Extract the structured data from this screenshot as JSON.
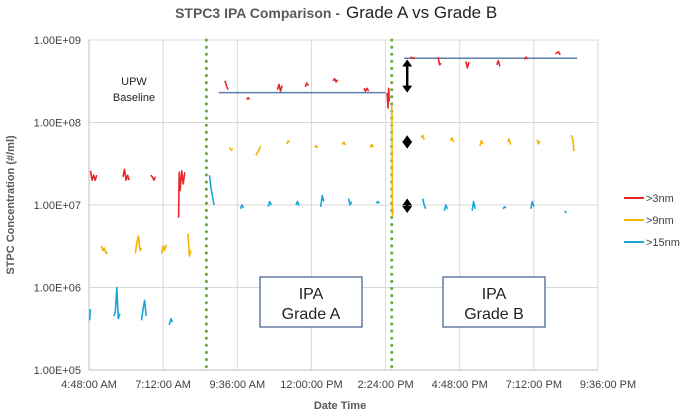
{
  "chart_data": {
    "type": "line",
    "title": "STPC3 IPA Comparison -",
    "title_suffix": "Grade A vs Grade B",
    "xlabel": "Date Time",
    "ylabel": "STPC Concentration (#/ml)",
    "yscale": "log",
    "ylim": [
      100000,
      1000000000
    ],
    "y_ticks": [
      "1.00E+05",
      "1.00E+06",
      "1.00E+07",
      "1.00E+08",
      "1.00E+09"
    ],
    "y_tick_values": [
      100000,
      1000000,
      10000000,
      100000000,
      1000000000
    ],
    "x_unit": "hours",
    "xlim": [
      4.8,
      22.5
    ],
    "x_ticks": [
      "4:48:00 AM",
      "7:12:00 AM",
      "9:36:00 AM",
      "12:00:00 PM",
      "2:24:00 PM",
      "4:48:00 PM",
      "7:12:00 PM",
      "9:36:00 PM"
    ],
    "x_tick_values": [
      4.8,
      7.2,
      9.6,
      12.0,
      14.4,
      16.8,
      19.2,
      21.6
    ],
    "grid": true,
    "legend_position": "right",
    "series": [
      {
        "name": ">3nm",
        "color": "#e8262a",
        "segments": [
          [
            [
              4.85,
              26000000.0
            ],
            [
              4.9,
              20000000.0
            ],
            [
              4.95,
              23000000.0
            ],
            [
              5.0,
              20000000.0
            ],
            [
              5.05,
              23000000.0
            ]
          ],
          [
            [
              5.9,
              22000000.0
            ],
            [
              5.95,
              27000000.0
            ],
            [
              6.0,
              20000000.0
            ],
            [
              6.05,
              23000000.0
            ],
            [
              6.1,
              20000000.0
            ]
          ],
          [
            [
              6.8,
              23000000.0
            ],
            [
              6.85,
              22000000.0
            ],
            [
              6.9,
              20000000.0
            ],
            [
              6.95,
              22000000.0
            ]
          ],
          [
            [
              7.7,
              7000000.0
            ],
            [
              7.72,
              25000000.0
            ],
            [
              7.75,
              15000000.0
            ],
            [
              7.8,
              26000000.0
            ],
            [
              7.85,
              18000000.0
            ],
            [
              7.9,
              25000000.0
            ]
          ],
          [
            [
              9.2,
              320000000.0
            ],
            [
              9.25,
              280000000.0
            ],
            [
              9.3,
              250000000.0
            ]
          ],
          [
            [
              9.9,
              190000000.0
            ],
            [
              9.95,
              200000000.0
            ],
            [
              10.0,
              190000000.0
            ]
          ],
          [
            [
              10.9,
              250000000.0
            ],
            [
              10.95,
              290000000.0
            ],
            [
              11.0,
              240000000.0
            ],
            [
              11.05,
              280000000.0
            ]
          ],
          [
            [
              11.8,
              270000000.0
            ],
            [
              11.85,
              300000000.0
            ],
            [
              11.9,
              280000000.0
            ]
          ],
          [
            [
              12.7,
              320000000.0
            ],
            [
              12.75,
              340000000.0
            ],
            [
              12.8,
              310000000.0
            ],
            [
              12.85,
              330000000.0
            ]
          ],
          [
            [
              13.7,
              260000000.0
            ],
            [
              13.75,
              240000000.0
            ],
            [
              13.8,
              260000000.0
            ],
            [
              13.85,
              240000000.0
            ]
          ],
          [
            [
              14.45,
              230000000.0
            ],
            [
              14.48,
              150000000.0
            ],
            [
              14.5,
              260000000.0
            ],
            [
              14.52,
              180000000.0
            ]
          ],
          [
            [
              15.2,
              620000000.0
            ],
            [
              15.3,
              600000000.0
            ],
            [
              15.35,
              610000000.0
            ]
          ],
          [
            [
              16.1,
              620000000.0
            ],
            [
              16.15,
              500000000.0
            ],
            [
              16.2,
              520000000.0
            ]
          ],
          [
            [
              17.0,
              550000000.0
            ],
            [
              17.05,
              460000000.0
            ],
            [
              17.1,
              540000000.0
            ]
          ],
          [
            [
              18.0,
              500000000.0
            ],
            [
              18.05,
              560000000.0
            ],
            [
              18.1,
              480000000.0
            ]
          ],
          [
            [
              18.9,
              580000000.0
            ],
            [
              18.95,
              620000000.0
            ],
            [
              19.0,
              590000000.0
            ]
          ],
          [
            [
              19.9,
              680000000.0
            ],
            [
              20.0,
              720000000.0
            ],
            [
              20.05,
              660000000.0
            ]
          ]
        ]
      },
      {
        "name": ">9nm",
        "color": "#f5b400",
        "segments": [
          [
            [
              5.2,
              3200000.0
            ],
            [
              5.25,
              2800000.0
            ],
            [
              5.3,
              3000000.0
            ],
            [
              5.35,
              2600000.0
            ],
            [
              5.4,
              2700000.0
            ]
          ],
          [
            [
              6.3,
              2600000.0
            ],
            [
              6.35,
              3500000.0
            ],
            [
              6.4,
              4200000.0
            ],
            [
              6.45,
              2800000.0
            ],
            [
              6.5,
              3000000.0
            ]
          ],
          [
            [
              7.15,
              2600000.0
            ],
            [
              7.2,
              3200000.0
            ],
            [
              7.25,
              2800000.0
            ],
            [
              7.3,
              3300000.0
            ]
          ],
          [
            [
              8.0,
              4500000.0
            ],
            [
              8.05,
              2400000.0
            ],
            [
              8.1,
              2800000.0
            ]
          ],
          [
            [
              9.35,
              50000000.0
            ],
            [
              9.4,
              46000000.0
            ],
            [
              9.45,
              48000000.0
            ]
          ],
          [
            [
              10.2,
              40000000.0
            ],
            [
              10.3,
              46000000.0
            ],
            [
              10.35,
              52000000.0
            ]
          ],
          [
            [
              11.2,
              55000000.0
            ],
            [
              11.25,
              60000000.0
            ],
            [
              11.3,
              58000000.0
            ]
          ],
          [
            [
              12.1,
              50000000.0
            ],
            [
              12.15,
              52000000.0
            ],
            [
              12.2,
              49000000.0
            ]
          ],
          [
            [
              13.0,
              54000000.0
            ],
            [
              13.05,
              58000000.0
            ],
            [
              13.1,
              53000000.0
            ]
          ],
          [
            [
              13.9,
              50000000.0
            ],
            [
              13.95,
              54000000.0
            ],
            [
              14.0,
              50000000.0
            ]
          ],
          [
            [
              14.6,
              160000000.0
            ],
            [
              14.62,
              7500000.0
            ],
            [
              14.65,
              9000000.0
            ]
          ],
          [
            [
              15.55,
              65000000.0
            ],
            [
              15.6,
              70000000.0
            ],
            [
              15.65,
              62000000.0
            ]
          ],
          [
            [
              16.5,
              60000000.0
            ],
            [
              16.55,
              65000000.0
            ],
            [
              16.6,
              58000000.0
            ]
          ],
          [
            [
              17.45,
              52000000.0
            ],
            [
              17.5,
              60000000.0
            ],
            [
              17.55,
              55000000.0
            ]
          ],
          [
            [
              18.35,
              58000000.0
            ],
            [
              18.4,
              63000000.0
            ],
            [
              18.45,
              54000000.0
            ]
          ],
          [
            [
              19.3,
              62000000.0
            ],
            [
              19.35,
              55000000.0
            ],
            [
              19.4,
              60000000.0
            ]
          ],
          [
            [
              20.4,
              70000000.0
            ],
            [
              20.45,
              65000000.0
            ],
            [
              20.5,
              45000000.0
            ]
          ]
        ]
      },
      {
        "name": ">15nm",
        "color": "#1aa6d8",
        "segments": [
          [
            [
              4.82,
              400000.0
            ],
            [
              4.85,
              550000.0
            ]
          ],
          [
            [
              5.6,
              450000.0
            ],
            [
              5.65,
              500000.0
            ],
            [
              5.7,
              1000000.0
            ],
            [
              5.75,
              420000.0
            ],
            [
              5.8,
              480000.0
            ]
          ],
          [
            [
              6.5,
              400000.0
            ],
            [
              6.55,
              550000.0
            ],
            [
              6.6,
              700000.0
            ],
            [
              6.65,
              450000.0
            ]
          ],
          [
            [
              7.4,
              350000.0
            ],
            [
              7.45,
              420000.0
            ],
            [
              7.5,
              380000.0
            ]
          ],
          [
            [
              8.7,
              23000000.0
            ],
            [
              8.75,
              16000000.0
            ],
            [
              8.85,
              10000000.0
            ]
          ],
          [
            [
              9.7,
              9000000.0
            ],
            [
              9.75,
              10000000.0
            ],
            [
              9.8,
              9200000.0
            ]
          ],
          [
            [
              10.6,
              9500000.0
            ],
            [
              10.65,
              11000000.0
            ],
            [
              10.7,
              10000000.0
            ]
          ],
          [
            [
              11.5,
              10000000.0
            ],
            [
              11.55,
              11000000.0
            ],
            [
              11.6,
              9800000.0
            ]
          ],
          [
            [
              12.3,
              9500000.0
            ],
            [
              12.35,
              13000000.0
            ],
            [
              12.4,
              11000000.0
            ]
          ],
          [
            [
              13.2,
              12000000.0
            ],
            [
              13.25,
              10000000.0
            ],
            [
              13.3,
              11000000.0
            ]
          ],
          [
            [
              14.1,
              10500000.0
            ],
            [
              14.15,
              11000000.0
            ],
            [
              14.2,
              10500000.0
            ]
          ],
          [
            [
              15.6,
              12000000.0
            ],
            [
              15.65,
              10000000.0
            ],
            [
              15.7,
              9000000.0
            ]
          ],
          [
            [
              16.3,
              8500000.0
            ],
            [
              16.35,
              10000000.0
            ],
            [
              16.4,
              9000000.0
            ]
          ],
          [
            [
              17.2,
              8500000.0
            ],
            [
              17.25,
              11000000.0
            ],
            [
              17.3,
              9000000.0
            ]
          ],
          [
            [
              18.2,
              9000000.0
            ],
            [
              18.25,
              9500000.0
            ],
            [
              18.3,
              9200000.0
            ]
          ],
          [
            [
              19.1,
              9000000.0
            ],
            [
              19.15,
              11000000.0
            ],
            [
              19.2,
              9500000.0
            ]
          ],
          [
            [
              20.2,
              8500000.0
            ],
            [
              20.25,
              8000000.0
            ]
          ]
        ]
      }
    ],
    "annotations": {
      "dividers_x": [
        8.6,
        14.6
      ],
      "baseline_grade_a": {
        "x": [
          9.0,
          14.4
        ],
        "y": 230000000
      },
      "baseline_grade_b": {
        "x": [
          15.0,
          20.6
        ],
        "y": 600000000
      },
      "arrows_x": 15.1,
      "arrows": [
        {
          "y_top": 580000000.0,
          "y_bottom": 230000000.0
        },
        {
          "y_top": 70000000.0,
          "y_bottom": 48000000.0
        },
        {
          "y_top": 12000000.0,
          "y_bottom": 8000000.0
        }
      ],
      "labels": {
        "upw_line1": "UPW",
        "upw_line2": "Baseline",
        "box_a_line1": "IPA",
        "box_a_line2": "Grade A",
        "box_b_line1": "IPA",
        "box_b_line2": "Grade B"
      }
    }
  }
}
